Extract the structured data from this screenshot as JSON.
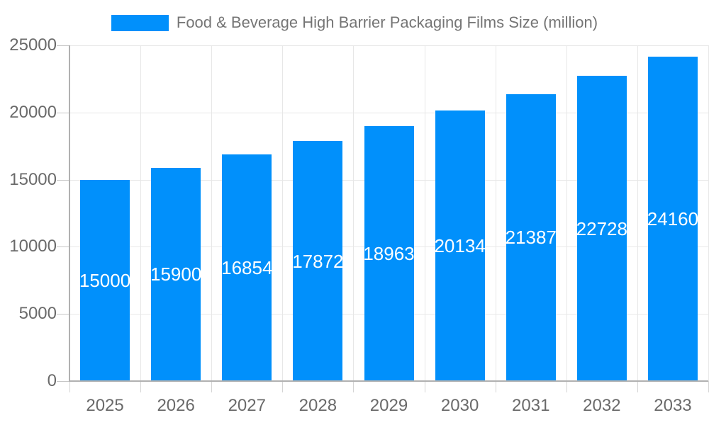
{
  "legend": {
    "label": "Food & Beverage High Barrier Packaging Films Size (million)",
    "swatch_color": "#0190fb"
  },
  "chart_data": {
    "type": "bar",
    "title": "Food & Beverage High Barrier Packaging Films Size (million)",
    "categories": [
      "2025",
      "2026",
      "2027",
      "2028",
      "2029",
      "2030",
      "2031",
      "2032",
      "2033"
    ],
    "series": [
      {
        "name": "Food & Beverage High Barrier Packaging Films Size (million)",
        "values": [
          15000,
          15900,
          16854,
          17872,
          18963,
          20134,
          21387,
          22728,
          24160
        ]
      }
    ],
    "xlabel": "",
    "ylabel": "",
    "ylim": [
      0,
      25000
    ],
    "y_ticks": [
      0,
      5000,
      10000,
      15000,
      20000,
      25000
    ],
    "grid": "both",
    "legend_position": "top-center",
    "bar_color": "#0190fb",
    "value_label_color": "#ffffff",
    "axis_text_color": "#6a6a6a"
  }
}
